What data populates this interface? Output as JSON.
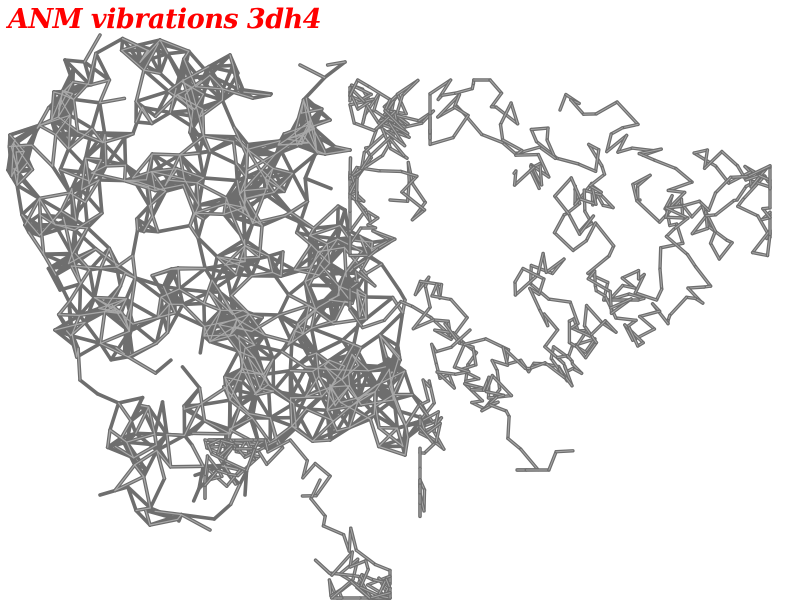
{
  "viewer": {
    "title": "ANM vibrations 3dh4",
    "title_color": "#ff0000",
    "background": "#ffffff",
    "tube_color": "#6e6e6e",
    "tube_highlight": "#a8a8a8"
  }
}
